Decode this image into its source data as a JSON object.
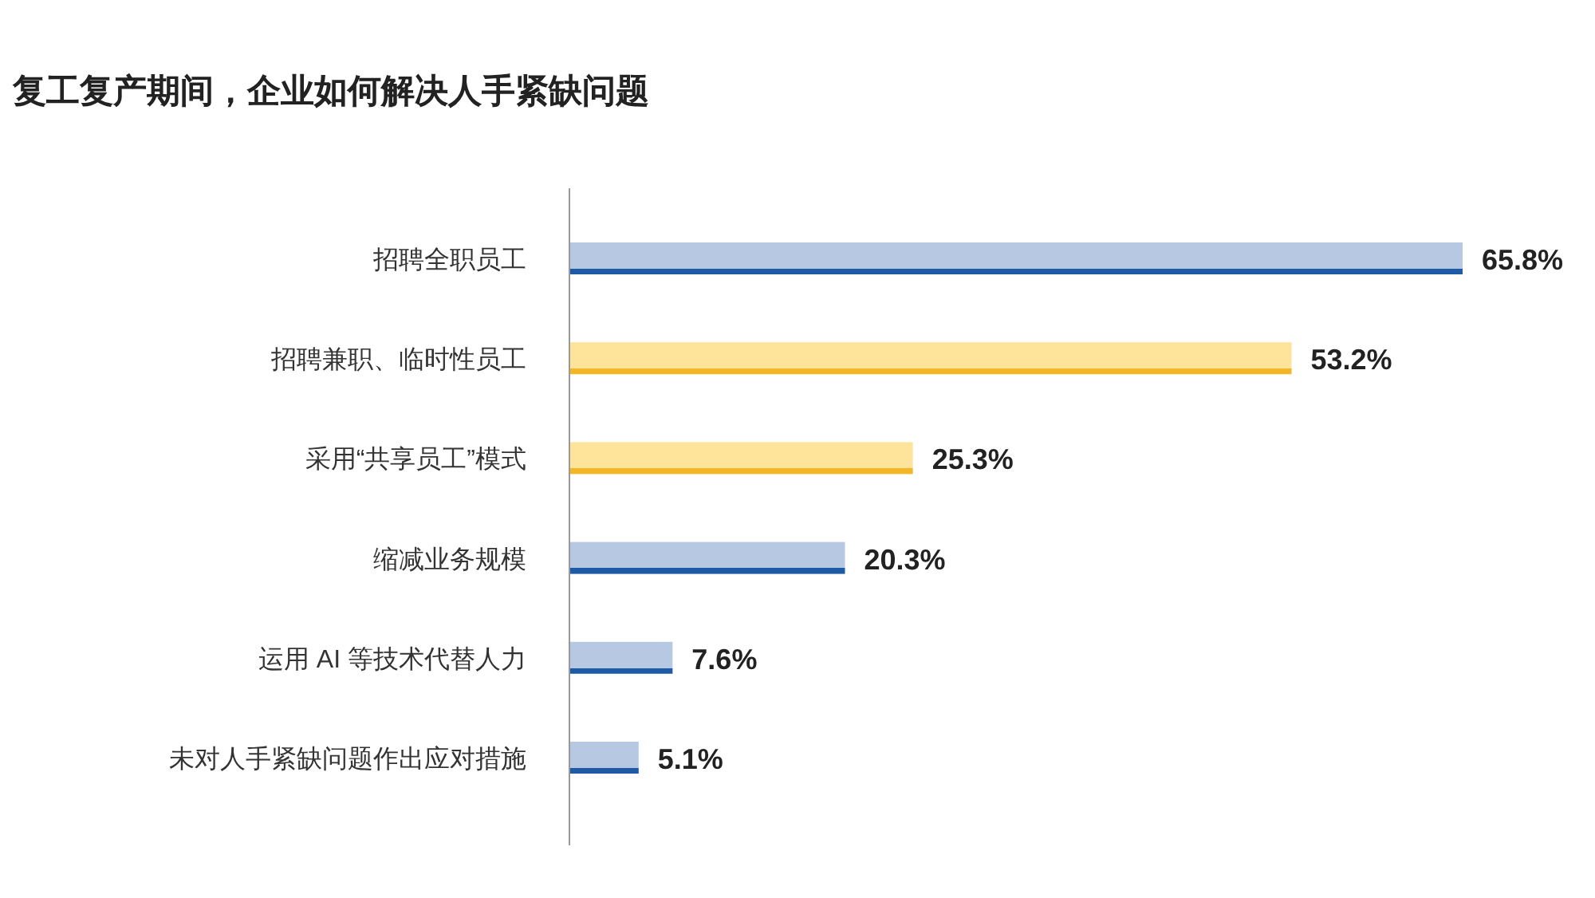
{
  "chart_data": {
    "type": "bar",
    "orientation": "horizontal",
    "title": "复工复产期间，企业如何解决人手紧缺问题",
    "categories": [
      "招聘全职员工",
      "招聘兼职、临时性员工",
      "采用“共享员工”模式",
      "缩减业务规模",
      "运用 AI 等技术代替人力",
      "未对人手紧缺问题作出应对措施"
    ],
    "values": [
      65.8,
      53.2,
      25.3,
      20.3,
      7.6,
      5.1
    ],
    "colors": [
      "#b7c9e2",
      "#fde49a",
      "#fde49a",
      "#b7c9e2",
      "#b7c9e2",
      "#b7c9e2"
    ],
    "value_labels": [
      "65.8%",
      "53.2%",
      "25.3%",
      "20.3%",
      "7.6%",
      "5.1%"
    ],
    "data_labels": false
  }
}
